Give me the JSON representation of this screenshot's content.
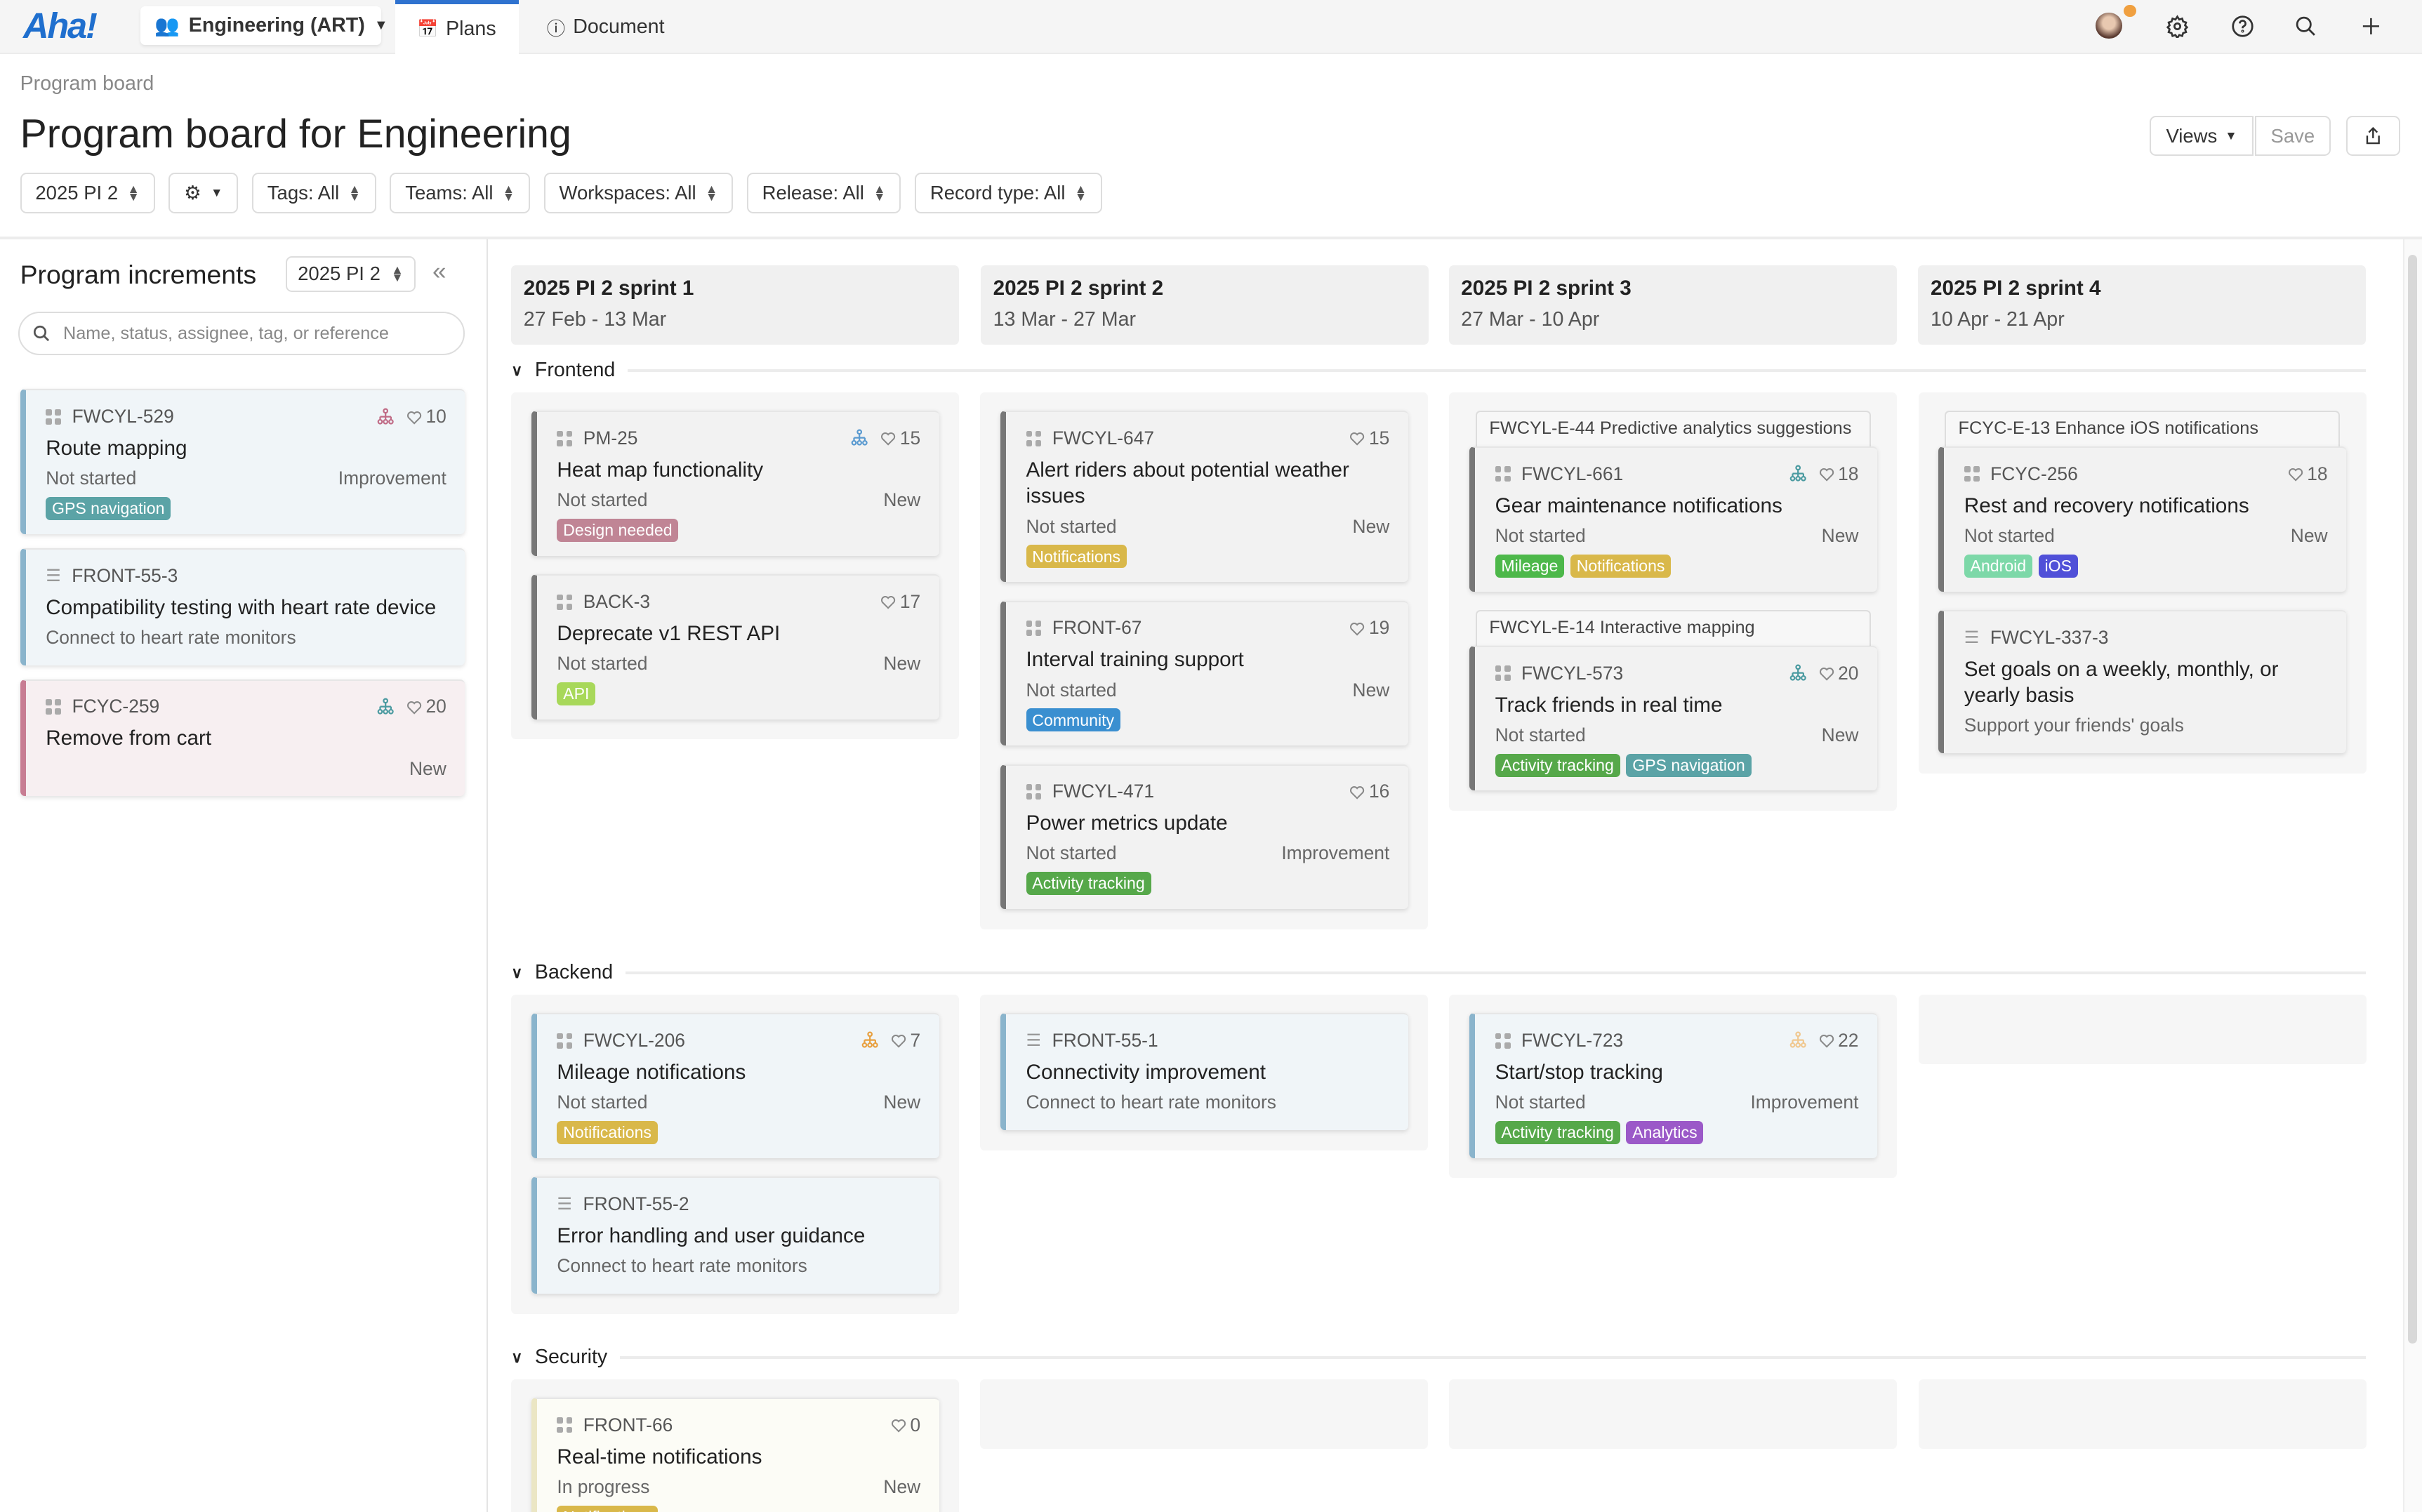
{
  "topbar": {
    "logo": "Aha!",
    "workspace": "Engineering (ART)",
    "tabs": [
      {
        "label": "Plans",
        "icon": "calendar-icon",
        "active": true
      },
      {
        "label": "Document",
        "icon": "info-icon",
        "active": false
      }
    ],
    "icons": [
      "avatar",
      "gear-icon",
      "help-icon",
      "search-icon",
      "plus-icon"
    ],
    "notification_color": "#f0a040"
  },
  "page": {
    "breadcrumb": "Program board",
    "title": "Program board for Engineering",
    "views_label": "Views",
    "save_label": "Save",
    "share_icon": "share-icon"
  },
  "filters": [
    {
      "label": "2025 PI 2"
    },
    {
      "label": "",
      "icon": "gear-icon"
    },
    {
      "label": "Tags: All"
    },
    {
      "label": "Teams: All"
    },
    {
      "label": "Workspaces: All"
    },
    {
      "label": "Release: All"
    },
    {
      "label": "Record type: All"
    }
  ],
  "sidebar": {
    "title": "Program increments",
    "select": "2025 PI 2",
    "search_placeholder": "Name, status, assignee, tag, or reference",
    "cards": [
      {
        "id": "FWCYL-529",
        "type": "feature",
        "style": "blue",
        "dep": "#c06b86",
        "comments": "10",
        "title": "Route mapping",
        "status": "Not started",
        "kind": "Improvement",
        "tags": [
          {
            "label": "GPS navigation",
            "color": "#5ba3a6"
          }
        ]
      },
      {
        "id": "FRONT-55-3",
        "type": "requirement",
        "style": "blue",
        "title": "Compatibility testing with heart rate device",
        "sub": "Connect to heart rate monitors"
      },
      {
        "id": "FCYC-259",
        "type": "feature",
        "style": "pink",
        "dep": "#4a9aa0",
        "comments": "20",
        "title": "Remove from cart",
        "status": "",
        "kind": "New",
        "tags": []
      }
    ]
  },
  "columns": [
    {
      "name": "2025 PI 2 sprint 1",
      "dates": "27 Feb - 13 Mar"
    },
    {
      "name": "2025 PI 2 sprint 2",
      "dates": "13 Mar - 27 Mar"
    },
    {
      "name": "2025 PI 2 sprint 3",
      "dates": "27 Mar - 10 Apr"
    },
    {
      "name": "2025 PI 2 sprint 4",
      "dates": "10 Apr - 21 Apr"
    }
  ],
  "groups": [
    {
      "name": "Frontend",
      "cells": [
        [
          {
            "id": "PM-25",
            "type": "feature",
            "style": "gray",
            "dep": "#5a9ad0",
            "comments": "15",
            "title": "Heat map functionality",
            "status": "Not started",
            "kind": "New",
            "tags": [
              {
                "label": "Design needed",
                "color": "#c08595"
              }
            ]
          },
          {
            "id": "BACK-3",
            "type": "feature",
            "style": "gray",
            "comments": "17",
            "title": "Deprecate v1 REST API",
            "status": "Not started",
            "kind": "New",
            "tags": [
              {
                "label": "API",
                "color": "#a8d85a"
              }
            ]
          }
        ],
        [
          {
            "id": "FWCYL-647",
            "type": "feature",
            "style": "gray",
            "comments": "15",
            "title": "Alert riders about potential weather issues",
            "status": "Not started",
            "kind": "New",
            "tags": [
              {
                "label": "Notifications",
                "color": "#d9b84a"
              }
            ]
          },
          {
            "id": "FRONT-67",
            "type": "feature",
            "style": "gray",
            "comments": "19",
            "title": "Interval training support",
            "status": "Not started",
            "kind": "New",
            "tags": [
              {
                "label": "Community",
                "color": "#3a8fd0"
              }
            ]
          },
          {
            "id": "FWCYL-471",
            "type": "feature",
            "style": "gray",
            "comments": "16",
            "title": "Power metrics update",
            "status": "Not started",
            "kind": "Improvement",
            "tags": [
              {
                "label": "Activity tracking",
                "color": "#56a84a"
              }
            ]
          }
        ],
        [
          {
            "epic": "FWCYL-E-44 Predictive analytics suggestions",
            "id": "FWCYL-661",
            "type": "feature",
            "style": "gray",
            "dep": "#4a9aa0",
            "comments": "18",
            "title": "Gear maintenance notifications",
            "status": "Not started",
            "kind": "New",
            "tags": [
              {
                "label": "Mileage",
                "color": "#4db84a"
              },
              {
                "label": "Notifications",
                "color": "#d9b84a"
              }
            ]
          },
          {
            "epic": "FWCYL-E-14 Interactive mapping",
            "id": "FWCYL-573",
            "type": "feature",
            "style": "gray",
            "dep": "#4a9aa0",
            "comments": "20",
            "title": "Track friends in real time",
            "status": "Not started",
            "kind": "New",
            "tags": [
              {
                "label": "Activity tracking",
                "color": "#56a84a"
              },
              {
                "label": "GPS navigation",
                "color": "#5ba3a6"
              }
            ]
          }
        ],
        [
          {
            "epic": "FCYC-E-13 Enhance iOS notifications",
            "id": "FCYC-256",
            "type": "feature",
            "style": "gray",
            "comments": "18",
            "title": "Rest and recovery notifications",
            "status": "Not started",
            "kind": "New",
            "tags": [
              {
                "label": "Android",
                "color": "#7dd8a8"
              },
              {
                "label": "iOS",
                "color": "#5050d8"
              }
            ]
          },
          {
            "id": "FWCYL-337-3",
            "type": "requirement",
            "style": "gray",
            "title": "Set goals on a weekly, monthly, or yearly basis",
            "sub": "Support your friends' goals"
          }
        ]
      ]
    },
    {
      "name": "Backend",
      "cells": [
        [
          {
            "id": "FWCYL-206",
            "type": "feature",
            "style": "blue",
            "dep": "#e8a040",
            "comments": "7",
            "title": "Mileage notifications",
            "status": "Not started",
            "kind": "New",
            "tags": [
              {
                "label": "Notifications",
                "color": "#d9b84a"
              }
            ]
          },
          {
            "id": "FRONT-55-2",
            "type": "requirement",
            "style": "blue",
            "title": "Error handling and user guidance",
            "sub": "Connect to heart rate monitors"
          }
        ],
        [
          {
            "id": "FRONT-55-1",
            "type": "requirement",
            "style": "blue",
            "title": "Connectivity improvement",
            "sub": "Connect to heart rate monitors"
          }
        ],
        [
          {
            "id": "FWCYL-723",
            "type": "feature",
            "style": "blue",
            "dep": "#f0c890",
            "comments": "22",
            "title": "Start/stop tracking",
            "status": "Not started",
            "kind": "Improvement",
            "tags": [
              {
                "label": "Activity tracking",
                "color": "#56a84a"
              },
              {
                "label": "Analytics",
                "color": "#9b59c8"
              }
            ]
          }
        ],
        []
      ]
    },
    {
      "name": "Security",
      "cells": [
        [
          {
            "id": "FRONT-66",
            "type": "feature",
            "style": "yellow",
            "comments": "0",
            "title": "Real-time notifications",
            "status": "In progress",
            "kind": "New",
            "tags": [
              {
                "label": "Notifications",
                "color": "#d9b84a"
              }
            ]
          }
        ],
        [],
        [],
        []
      ]
    }
  ]
}
